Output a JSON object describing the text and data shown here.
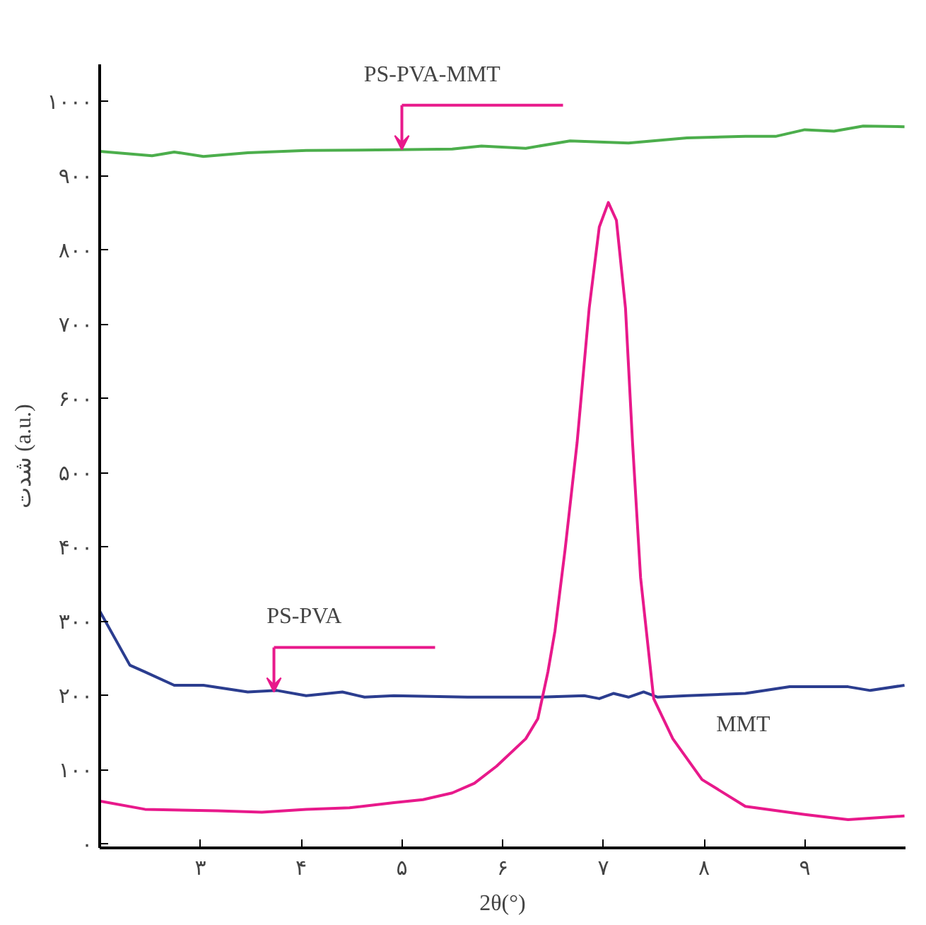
{
  "chart_data": {
    "type": "line",
    "xlabel": "2θ(°)",
    "ylabel": "شدت (a.u.)",
    "xlim": [
      2.0,
      10.0
    ],
    "ylim": [
      -5,
      1050
    ],
    "xticks": [
      {
        "value": 3,
        "label": "۳"
      },
      {
        "value": 4,
        "label": "۴"
      },
      {
        "value": 5,
        "label": "۵"
      },
      {
        "value": 6,
        "label": "۶"
      },
      {
        "value": 7,
        "label": "۷"
      },
      {
        "value": 8,
        "label": "۸"
      },
      {
        "value": 9,
        "label": "۹"
      }
    ],
    "yticks": [
      {
        "value": 0,
        "label": "۰"
      },
      {
        "value": 100,
        "label": "۱۰۰"
      },
      {
        "value": 200,
        "label": "۲۰۰"
      },
      {
        "value": 300,
        "label": "۳۰۰"
      },
      {
        "value": 400,
        "label": "۴۰۰"
      },
      {
        "value": 500,
        "label": "۵۰۰"
      },
      {
        "value": 600,
        "label": "۶۰۰"
      },
      {
        "value": 700,
        "label": "۷۰۰"
      },
      {
        "value": 800,
        "label": "۸۰۰"
      },
      {
        "value": 900,
        "label": "۹۰۰"
      },
      {
        "value": 1000,
        "label": "۱۰۰۰"
      }
    ],
    "grid": false,
    "marker": "none",
    "line_style": "solid",
    "annotations": [
      {
        "text": "PS-PVA-MMT",
        "x": 5.0,
        "y": 935
      },
      {
        "text": "PS-PVA",
        "x": 3.73,
        "y": 205
      }
    ],
    "series": [
      {
        "color": "#4cae4c",
        "x": [
          2.0,
          2.52,
          2.74,
          3.03,
          3.47,
          4.05,
          4.92,
          5.5,
          5.79,
          6.23,
          6.67,
          7.25,
          7.83,
          8.41,
          8.71,
          9.0,
          9.29,
          9.58,
          9.99
        ],
        "values": [
          933,
          927,
          932,
          926,
          931,
          934,
          935,
          936,
          940,
          937,
          947,
          944,
          951,
          953,
          953,
          962,
          960,
          967,
          966
        ]
      },
      {
        "color": "#2b3d8f",
        "x": [
          2.0,
          2.3,
          2.45,
          2.74,
          3.03,
          3.47,
          3.76,
          4.05,
          4.41,
          4.63,
          4.92,
          5.65,
          6.38,
          6.81,
          6.96,
          7.1,
          7.25,
          7.4,
          7.54,
          7.83,
          8.41,
          8.85,
          9.43,
          9.65,
          9.99
        ],
        "values": [
          314,
          241,
          232,
          214,
          214,
          205,
          207,
          200,
          205,
          198,
          200,
          198,
          198,
          200,
          196,
          203,
          198,
          205,
          198,
          200,
          203,
          212,
          212,
          207,
          214
        ]
      },
      {
        "name": "MMT",
        "color": "#e8198b",
        "x": [
          2.0,
          2.45,
          3.17,
          3.61,
          4.05,
          4.48,
          4.92,
          5.21,
          5.5,
          5.72,
          5.94,
          6.23,
          6.35,
          6.45,
          6.52,
          6.62,
          6.74,
          6.86,
          6.96,
          7.05,
          7.13,
          7.22,
          7.29,
          7.37,
          7.5,
          7.69,
          7.98,
          8.41,
          9.0,
          9.43,
          9.99
        ],
        "values": [
          58,
          47,
          45,
          43,
          47,
          49,
          56,
          60,
          69,
          82,
          105,
          142,
          169,
          232,
          287,
          396,
          541,
          722,
          831,
          864,
          840,
          722,
          541,
          359,
          196,
          142,
          87,
          51,
          40,
          33,
          38
        ]
      }
    ]
  }
}
